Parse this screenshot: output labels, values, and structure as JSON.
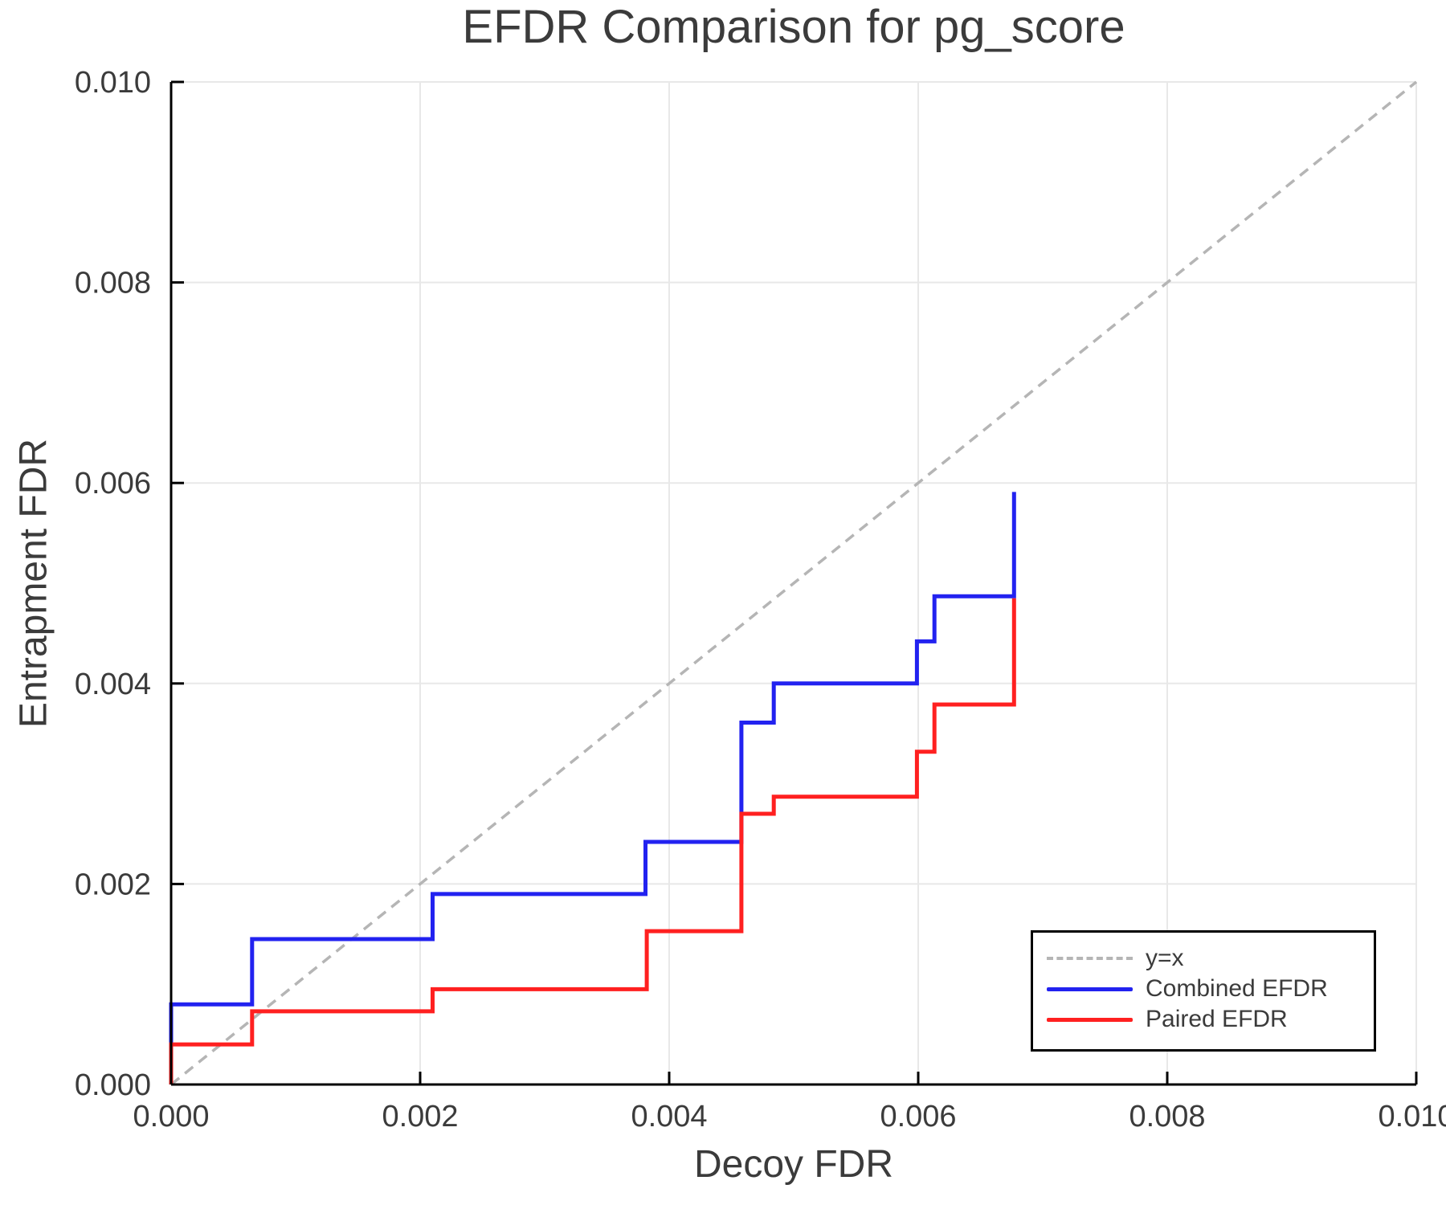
{
  "chart_data": {
    "type": "line",
    "subtype": "step-efdr-comparison",
    "title": "EFDR Comparison for pg_score",
    "xlabel": "Decoy FDR",
    "ylabel": "Entrapment FDR",
    "xlim": [
      0.0,
      0.01
    ],
    "ylim": [
      0.0,
      0.01
    ],
    "x_tick_labels": [
      "0.000",
      "0.002",
      "0.004",
      "0.006",
      "0.008",
      "0.010"
    ],
    "y_tick_labels": [
      "0.000",
      "0.002",
      "0.004",
      "0.006",
      "0.008",
      "0.010"
    ],
    "grid": true,
    "legend_position": "lower-right",
    "series": [
      {
        "name": "y=x",
        "line_style": "dashed",
        "color": "#b5b5b5",
        "points": [
          [
            0.0,
            0.0
          ],
          [
            0.01,
            0.01
          ]
        ]
      },
      {
        "name": "Combined EFDR",
        "line_style": "solid",
        "color": "#2222f0",
        "points": [
          [
            0.0,
            0.0
          ],
          [
            0.0,
            0.0008
          ],
          [
            0.00065,
            0.0008
          ],
          [
            0.00065,
            0.00145
          ],
          [
            0.0021,
            0.00145
          ],
          [
            0.0021,
            0.0019
          ],
          [
            0.00381,
            0.0019
          ],
          [
            0.00381,
            0.00242
          ],
          [
            0.00458,
            0.00242
          ],
          [
            0.00458,
            0.00361
          ],
          [
            0.00484,
            0.00361
          ],
          [
            0.00484,
            0.004
          ],
          [
            0.00599,
            0.004
          ],
          [
            0.00599,
            0.00442
          ],
          [
            0.00613,
            0.00442
          ],
          [
            0.00613,
            0.00487
          ],
          [
            0.00677,
            0.00487
          ],
          [
            0.00677,
            0.00591
          ]
        ]
      },
      {
        "name": "Paired EFDR",
        "line_style": "solid",
        "color": "#ff2020",
        "points": [
          [
            0.0,
            0.0
          ],
          [
            0.0,
            0.0004
          ],
          [
            0.00065,
            0.0004
          ],
          [
            0.00065,
            0.00073
          ],
          [
            0.0021,
            0.00073
          ],
          [
            0.0021,
            0.00095
          ],
          [
            0.00382,
            0.00095
          ],
          [
            0.00382,
            0.00153
          ],
          [
            0.00458,
            0.00153
          ],
          [
            0.00458,
            0.0027
          ],
          [
            0.00484,
            0.0027
          ],
          [
            0.00484,
            0.00287
          ],
          [
            0.00599,
            0.00287
          ],
          [
            0.00599,
            0.00332
          ],
          [
            0.00613,
            0.00332
          ],
          [
            0.00613,
            0.00379
          ],
          [
            0.00677,
            0.00379
          ],
          [
            0.00677,
            0.00485
          ]
        ]
      }
    ],
    "style": {
      "grid_color": "#e8e8e8",
      "spine_color": "#000000",
      "text_color": "#3b3b3b",
      "background": "#ffffff"
    }
  }
}
